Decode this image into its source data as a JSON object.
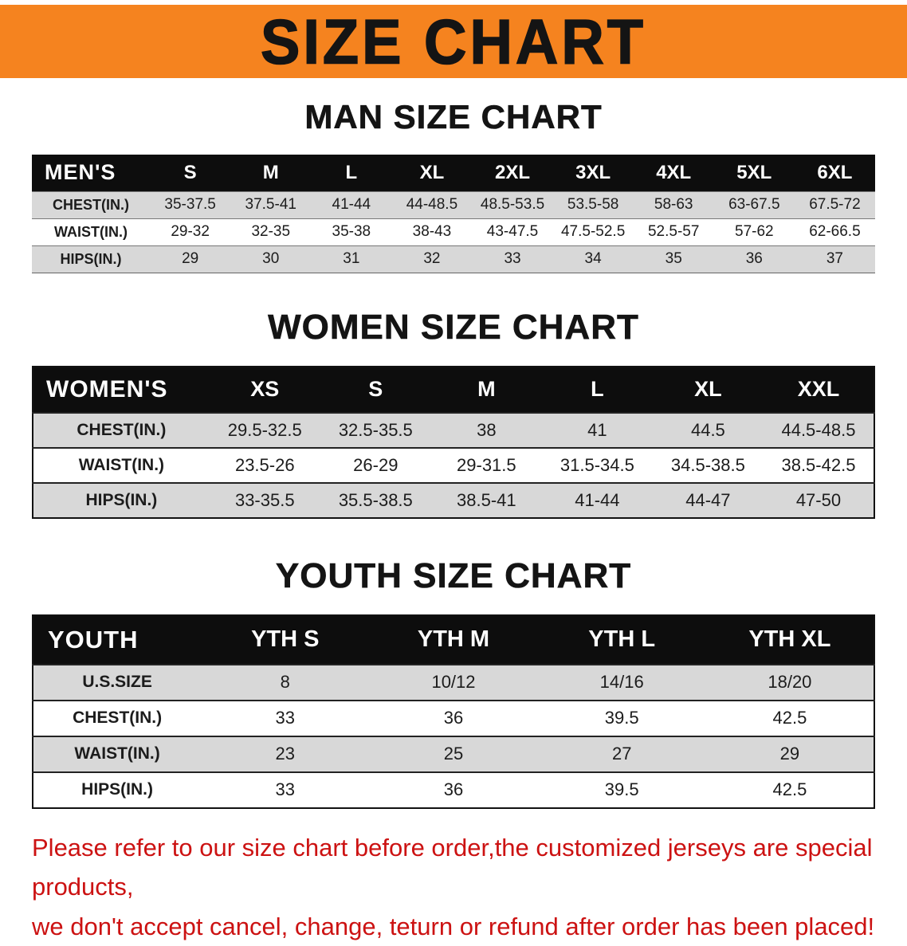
{
  "banner": {
    "title": "SIZE CHART"
  },
  "men": {
    "heading": "MAN SIZE CHART",
    "table": {
      "corner_label": "MEN'S",
      "columns": [
        "S",
        "M",
        "L",
        "XL",
        "2XL",
        "3XL",
        "4XL",
        "5XL",
        "6XL"
      ],
      "rows": [
        {
          "label": "CHEST(IN.)",
          "values": [
            "35-37.5",
            "37.5-41",
            "41-44",
            "44-48.5",
            "48.5-53.5",
            "53.5-58",
            "58-63",
            "63-67.5",
            "67.5-72"
          ]
        },
        {
          "label": "WAIST(IN.)",
          "values": [
            "29-32",
            "32-35",
            "35-38",
            "38-43",
            "43-47.5",
            "47.5-52.5",
            "52.5-57",
            "57-62",
            "62-66.5"
          ]
        },
        {
          "label": "HIPS(IN.)",
          "values": [
            "29",
            "30",
            "31",
            "32",
            "33",
            "34",
            "35",
            "36",
            "37"
          ]
        }
      ]
    }
  },
  "women": {
    "heading": "WOMEN SIZE CHART",
    "table": {
      "corner_label": "WOMEN'S",
      "columns": [
        "XS",
        "S",
        "M",
        "L",
        "XL",
        "XXL"
      ],
      "rows": [
        {
          "label": "CHEST(IN.)",
          "values": [
            "29.5-32.5",
            "32.5-35.5",
            "38",
            "41",
            "44.5",
            "44.5-48.5"
          ]
        },
        {
          "label": "WAIST(IN.)",
          "values": [
            "23.5-26",
            "26-29",
            "29-31.5",
            "31.5-34.5",
            "34.5-38.5",
            "38.5-42.5"
          ]
        },
        {
          "label": "HIPS(IN.)",
          "values": [
            "33-35.5",
            "35.5-38.5",
            "38.5-41",
            "41-44",
            "44-47",
            "47-50"
          ]
        }
      ]
    }
  },
  "youth": {
    "heading": "YOUTH SIZE CHART",
    "table": {
      "corner_label": "YOUTH",
      "columns": [
        "YTH S",
        "YTH M",
        "YTH L",
        "YTH XL"
      ],
      "rows": [
        {
          "label": "U.S.SIZE",
          "values": [
            "8",
            "10/12",
            "14/16",
            "18/20"
          ]
        },
        {
          "label": "CHEST(IN.)",
          "values": [
            "33",
            "36",
            "39.5",
            "42.5"
          ]
        },
        {
          "label": "WAIST(IN.)",
          "values": [
            "23",
            "25",
            "27",
            "29"
          ]
        },
        {
          "label": "HIPS(IN.)",
          "values": [
            "33",
            "36",
            "39.5",
            "42.5"
          ]
        }
      ]
    }
  },
  "footer": {
    "line1": "Please refer to our size chart before order,the customized jerseys are special products,",
    "line2": "we don't accept cancel, change, teturn or refund after order has been placed!"
  },
  "colors": {
    "banner_bg": "#F5831F",
    "table_header_bg": "#0D0D0D",
    "row_stripe": "#D8D8D8",
    "footer_text": "#CC1212"
  }
}
